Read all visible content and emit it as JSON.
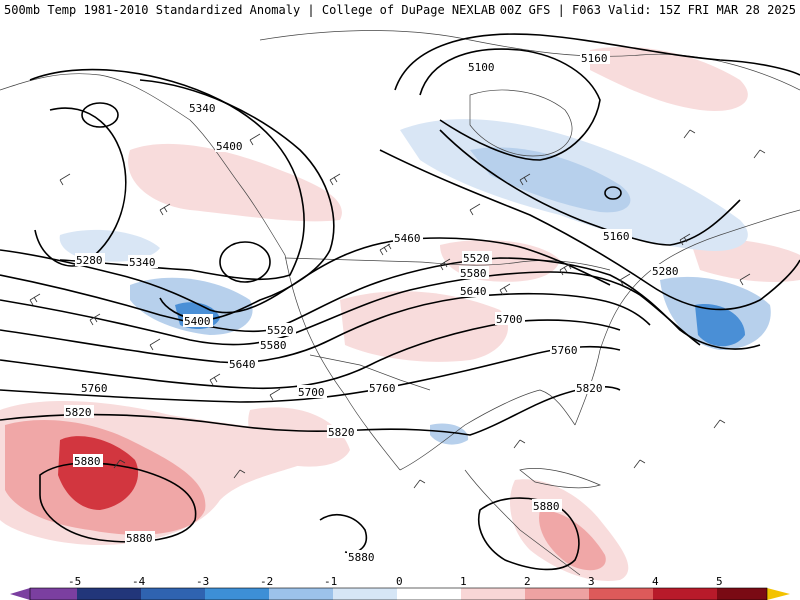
{
  "header": {
    "left_title": "500mb Temp 1981-2010 Standardized Anomaly | College of DuPage NEXLAB",
    "right_title": "00Z GFS | F063 Valid: 15Z FRI MAR 28 2025"
  },
  "contour_labels": [
    "5100",
    "5160",
    "5160",
    "5280",
    "5280",
    "5340",
    "5340",
    "5400",
    "5400",
    "5460",
    "5520",
    "5520",
    "5580",
    "5580",
    "5640",
    "5640",
    "5700",
    "5700",
    "5760",
    "5760",
    "5760",
    "5820",
    "5820",
    "5820",
    "5880",
    "5880",
    "5880",
    "5880"
  ],
  "colorbar": {
    "ticks": [
      "-5",
      "-4",
      "-3",
      "-2",
      "-1",
      "0",
      "1",
      "2",
      "3",
      "4",
      "5"
    ],
    "colors": [
      "#7b3fa0",
      "#22367a",
      "#2f63b0",
      "#3d8fd6",
      "#9cc2ea",
      "#d6e6f6",
      "#ffffff",
      "#f8d6d6",
      "#eea2a2",
      "#dd5a5a",
      "#b81a2a",
      "#7a0a14",
      "#f3c300"
    ]
  },
  "anomaly_palette": {
    "cool_light": "#d9e6f5",
    "cool_mid": "#b7d0ec",
    "cool_strong": "#4a8fd6",
    "warm_light": "#f8dcdc",
    "warm_mid": "#f0a7a7",
    "warm_strong": "#d2363f"
  }
}
